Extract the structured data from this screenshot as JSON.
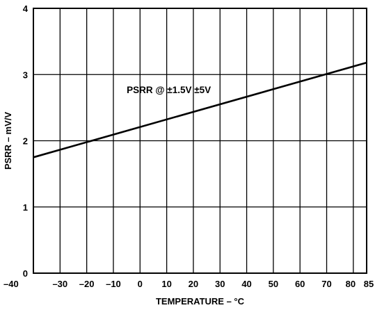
{
  "chart_data": {
    "type": "line",
    "title": "",
    "xlabel": "TEMPERATURE – °C",
    "ylabel": "PSRR – mV/V",
    "xlim": [
      -40,
      85
    ],
    "ylim": [
      0,
      4
    ],
    "x_ticks": [
      -40,
      -30,
      -20,
      -10,
      0,
      10,
      20,
      30,
      40,
      50,
      60,
      70,
      80,
      85
    ],
    "x_tick_labels": [
      "–40",
      "–30",
      "–20",
      "–10",
      "0",
      "10",
      "20",
      "30",
      "40",
      "50",
      "60",
      "70",
      "80",
      "85"
    ],
    "y_ticks": [
      0,
      1,
      2,
      3,
      4
    ],
    "y_tick_labels": [
      "0",
      "1",
      "2",
      "3",
      "4"
    ],
    "grid": true,
    "series": [
      {
        "x": [
          -40,
          85
        ],
        "y": [
          1.75,
          3.18
        ]
      }
    ],
    "annotations": [
      {
        "text": "PSRR @ ±1.5V ±5V",
        "x": -5,
        "y": 2.72
      }
    ]
  }
}
